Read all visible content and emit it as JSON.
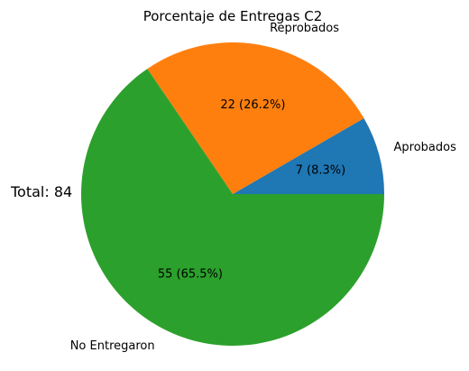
{
  "chart_data": {
    "type": "pie",
    "title": "Porcentaje de Entregas C2",
    "total_label": "Total: 84",
    "slices": [
      {
        "label": "Aprobados",
        "value": 7,
        "value_label": "7 (8.3%)",
        "color": "#1f77b4"
      },
      {
        "label": "Reprobados",
        "value": 22,
        "value_label": "22 (26.2%)",
        "color": "#ff7f0e"
      },
      {
        "label": "No Entregaron",
        "value": 55,
        "value_label": "55 (65.5%)",
        "color": "#2ca02c"
      }
    ],
    "start_angle": "0 (counter-clockwise)"
  }
}
